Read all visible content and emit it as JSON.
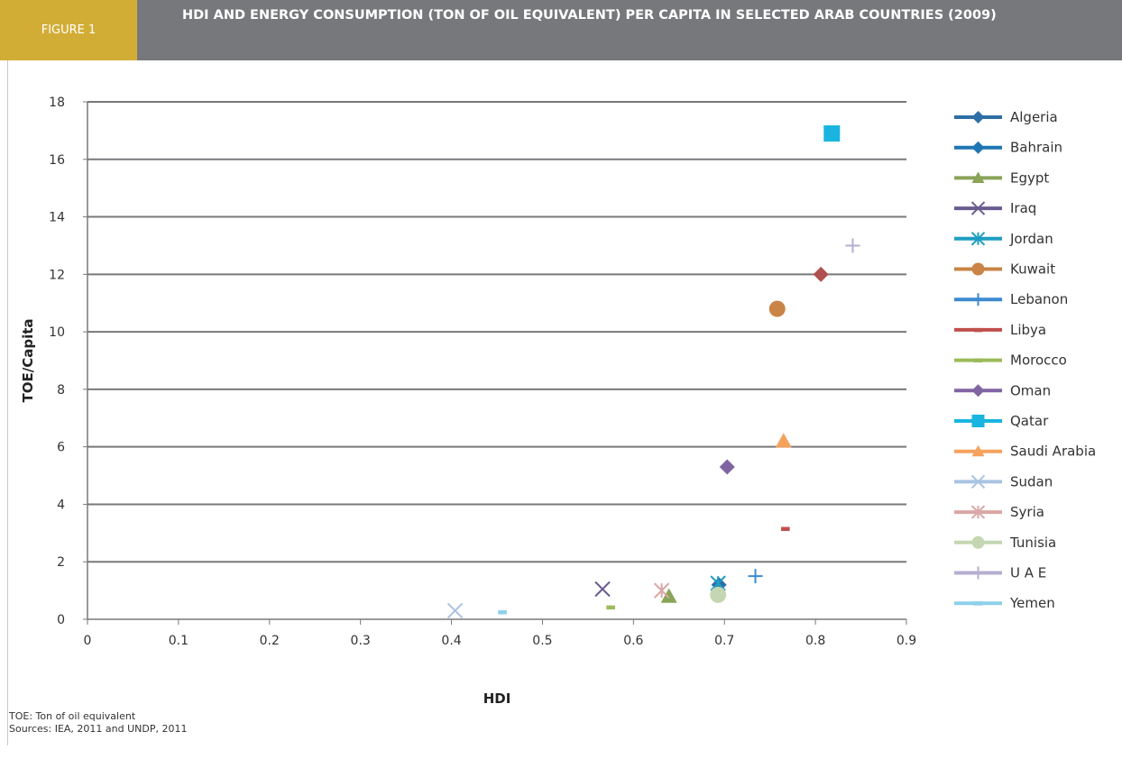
{
  "header": {
    "figure_label": "FIGURE 1",
    "title": "HDI AND ENERGY CONSUMPTION (TON OF OIL EQUIVALENT) PER CAPITA IN SELECTED ARAB COUNTRIES (2009)"
  },
  "footnotes": {
    "note": "TOE: Ton of oil equivalent",
    "sources": "Sources: IEA, 2011 and UNDP, 2011"
  },
  "chart_data": {
    "type": "scatter",
    "xlabel": "HDI",
    "ylabel": "TOE/Capita",
    "xlim": [
      0,
      0.9
    ],
    "ylim": [
      0,
      18
    ],
    "xticks": [
      "0",
      "0.1",
      "0.2",
      "0.3",
      "0.4",
      "0.5",
      "0.6",
      "0.7",
      "0.8",
      "0.9"
    ],
    "yticks": [
      "0",
      "2",
      "4",
      "6",
      "8",
      "10",
      "12",
      "14",
      "16",
      "18"
    ],
    "grid": "horizontal",
    "legend_position": "right",
    "series": [
      {
        "name": "Algeria",
        "x": 0.694,
        "y": 1.2,
        "color": "#2e6ea6",
        "marker": "diamond"
      },
      {
        "name": "Bahrain",
        "x": 0.806,
        "y": 12.0,
        "color": "#b0514f",
        "marker": "diamond",
        "legend_color": "#1f76b3"
      },
      {
        "name": "Egypt",
        "x": 0.639,
        "y": 0.8,
        "color": "#8aa458",
        "marker": "triangle"
      },
      {
        "name": "Iraq",
        "x": 0.566,
        "y": 1.05,
        "color": "#6a5c8e",
        "marker": "x"
      },
      {
        "name": "Jordan",
        "x": 0.693,
        "y": 1.25,
        "color": "#1e9dc2",
        "marker": "star"
      },
      {
        "name": "Kuwait",
        "x": 0.758,
        "y": 10.8,
        "color": "#c98446",
        "marker": "circle"
      },
      {
        "name": "Lebanon",
        "x": 0.734,
        "y": 1.5,
        "color": "#3c8ad0",
        "marker": "plus"
      },
      {
        "name": "Libya",
        "x": 0.767,
        "y": 3.15,
        "color": "#c0504d",
        "marker": "dash"
      },
      {
        "name": "Morocco",
        "x": 0.575,
        "y": 0.42,
        "color": "#9bbb59",
        "marker": "dash"
      },
      {
        "name": "Oman",
        "x": 0.703,
        "y": 5.3,
        "color": "#8064a2",
        "marker": "diamond"
      },
      {
        "name": "Qatar",
        "x": 0.818,
        "y": 16.9,
        "color": "#19b5e0",
        "marker": "square"
      },
      {
        "name": "Saudi Arabia",
        "x": 0.765,
        "y": 6.2,
        "color": "#f5a25d",
        "marker": "triangle"
      },
      {
        "name": "Sudan",
        "x": 0.404,
        "y": 0.3,
        "color": "#a9c3e3",
        "marker": "x"
      },
      {
        "name": "Syria",
        "x": 0.631,
        "y": 1.0,
        "color": "#d9a7a6",
        "marker": "star"
      },
      {
        "name": "Tunisia",
        "x": 0.693,
        "y": 0.85,
        "color": "#c4d7b2",
        "marker": "circle"
      },
      {
        "name": "U A E",
        "x": 0.841,
        "y": 13.0,
        "color": "#b6aed0",
        "marker": "plus"
      },
      {
        "name": "Yemen",
        "x": 0.456,
        "y": 0.25,
        "color": "#8ed0ea",
        "marker": "dash"
      }
    ]
  }
}
